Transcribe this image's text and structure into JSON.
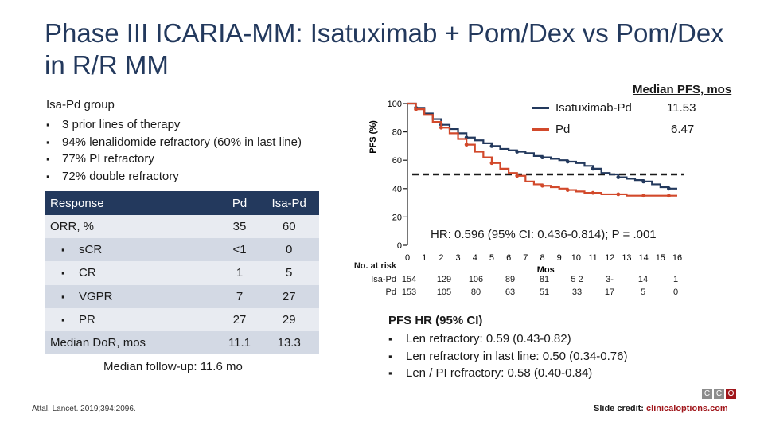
{
  "title": "Phase III ICARIA-MM: Isatuximab + Pom/Dex vs Pom/Dex in R/R MM",
  "group": {
    "heading": "Isa-Pd group",
    "items": [
      "3 prior lines of therapy",
      "94% lenalidomide refractory (60% in last line)",
      "77% PI refractory",
      "72% double refractory"
    ]
  },
  "table": {
    "headers": [
      "Response",
      "Pd",
      "Isa-Pd"
    ],
    "rows": [
      {
        "label": "ORR, %",
        "pd": "35",
        "isa": "60",
        "sub": false
      },
      {
        "label": "sCR",
        "pd": "<1",
        "isa": "0",
        "sub": true
      },
      {
        "label": "CR",
        "pd": "1",
        "isa": "5",
        "sub": true
      },
      {
        "label": "VGPR",
        "pd": "7",
        "isa": "27",
        "sub": true
      },
      {
        "label": "PR",
        "pd": "27",
        "isa": "29",
        "sub": true
      },
      {
        "label": "Median DoR, mos",
        "pd": "11.1",
        "isa": "13.3",
        "sub": false
      }
    ]
  },
  "followup": "Median follow-up: 11.6 mo",
  "reference": "Attal. Lancet. 2019;394:2096.",
  "chart_data": {
    "type": "line",
    "title": "",
    "ylabel": "PFS (%)",
    "xlabel": "Mos",
    "ylim": [
      0,
      100
    ],
    "xlim": [
      0,
      16
    ],
    "yticks": [
      0,
      20,
      40,
      60,
      80,
      100
    ],
    "xticks": [
      0,
      1,
      2,
      3,
      4,
      5,
      6,
      7,
      8,
      9,
      10,
      11,
      12,
      13,
      14,
      15,
      16
    ],
    "median_line": 50,
    "series": [
      {
        "name": "Isatuximab-Pd",
        "color": "#23395d",
        "median_pfs": "11.53",
        "x": [
          0,
          0.5,
          1,
          1.5,
          2,
          2.5,
          3,
          3.5,
          4,
          4.5,
          5,
          5.5,
          6,
          6.5,
          7,
          7.5,
          8,
          8.5,
          9,
          9.5,
          10,
          10.5,
          11,
          11.5,
          12,
          12.5,
          13,
          13.5,
          14,
          14.5,
          15,
          15.5,
          16
        ],
        "y": [
          100,
          97,
          93,
          89,
          85,
          82,
          79,
          76,
          74,
          72,
          70,
          68,
          67,
          66,
          65,
          63,
          62,
          61,
          60,
          59,
          58,
          56,
          54,
          51,
          50,
          48,
          47,
          46,
          45,
          43,
          41,
          40,
          40
        ]
      },
      {
        "name": "Pd",
        "color": "#d2492b",
        "median_pfs": "6.47",
        "x": [
          0,
          0.5,
          1,
          1.5,
          2,
          2.5,
          3,
          3.5,
          4,
          4.5,
          5,
          5.5,
          6,
          6.5,
          7,
          7.5,
          8,
          8.5,
          9,
          9.5,
          10,
          10.5,
          11,
          11.5,
          12,
          12.5,
          13,
          13.5,
          14,
          14.5,
          15,
          15.5,
          16
        ],
        "y": [
          100,
          96,
          92,
          87,
          83,
          79,
          75,
          71,
          66,
          62,
          58,
          54,
          51,
          49,
          45,
          43,
          42,
          41,
          40,
          39,
          38,
          37,
          37,
          36,
          36,
          36,
          35,
          35,
          35,
          35,
          35,
          35,
          35
        ]
      }
    ],
    "hazard_ratio": "HR: 0.596 (95% CI: 0.436-0.814); P = .001",
    "at_risk": {
      "label": "No. at risk",
      "rows": [
        {
          "name": "Isa-Pd",
          "values": [
            "154",
            "129",
            "106",
            "89",
            "81",
            "5 2",
            "3-",
            "14",
            "1"
          ]
        },
        {
          "name": "Pd",
          "values": [
            "153",
            "105",
            "80",
            "63",
            "51",
            "33",
            "17",
            "5",
            "0"
          ]
        }
      ]
    }
  },
  "legend": {
    "heading": "Median PFS, mos"
  },
  "pfs_hr": {
    "heading": "PFS HR (95% CI)",
    "items": [
      "Len refractory: 0.59 (0.43-0.82)",
      "Len refractory in last line: 0.50 (0.34-0.76)",
      "Len / PI refractory: 0.58 (0.40-0.84)"
    ]
  },
  "credit": {
    "label": "Slide credit:",
    "link": "clinicaloptions.com"
  },
  "logo": [
    "C",
    "C",
    "O"
  ]
}
